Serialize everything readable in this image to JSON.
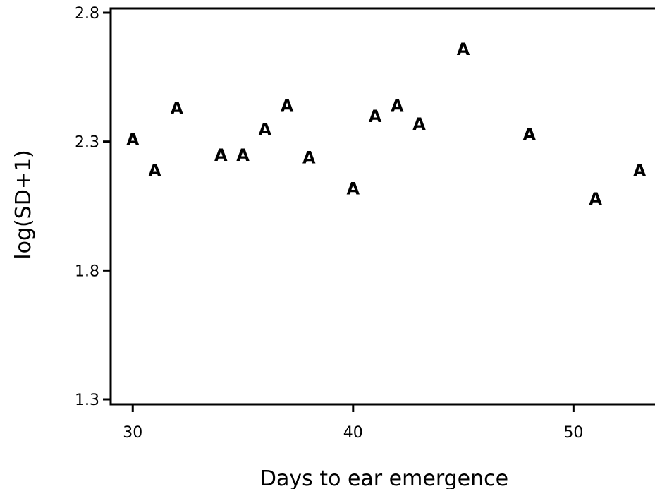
{
  "chart_data": {
    "type": "scatter",
    "xlabel": "Days to ear emergence",
    "ylabel": "log(SD+1)",
    "marker": "A",
    "xlim": [
      29,
      53.7
    ],
    "ylim": [
      1.3,
      2.8
    ],
    "xticks": [
      30,
      40,
      50
    ],
    "xtick_labels": [
      "30",
      "40",
      "50"
    ],
    "yticks": [
      1.3,
      1.8,
      2.3,
      2.8
    ],
    "ytick_labels": [
      "1.3",
      "1.8",
      "2.3",
      "2.8"
    ],
    "grid": false,
    "points": [
      {
        "x": 30,
        "y": 2.31
      },
      {
        "x": 31,
        "y": 2.19
      },
      {
        "x": 32,
        "y": 2.43
      },
      {
        "x": 34,
        "y": 2.25
      },
      {
        "x": 35,
        "y": 2.25
      },
      {
        "x": 36,
        "y": 2.35
      },
      {
        "x": 37,
        "y": 2.44
      },
      {
        "x": 38,
        "y": 2.24
      },
      {
        "x": 40,
        "y": 2.12
      },
      {
        "x": 41,
        "y": 2.4
      },
      {
        "x": 42,
        "y": 2.44
      },
      {
        "x": 43,
        "y": 2.37
      },
      {
        "x": 45,
        "y": 2.66
      },
      {
        "x": 48,
        "y": 2.33
      },
      {
        "x": 51,
        "y": 2.08
      },
      {
        "x": 53,
        "y": 2.19
      }
    ]
  }
}
